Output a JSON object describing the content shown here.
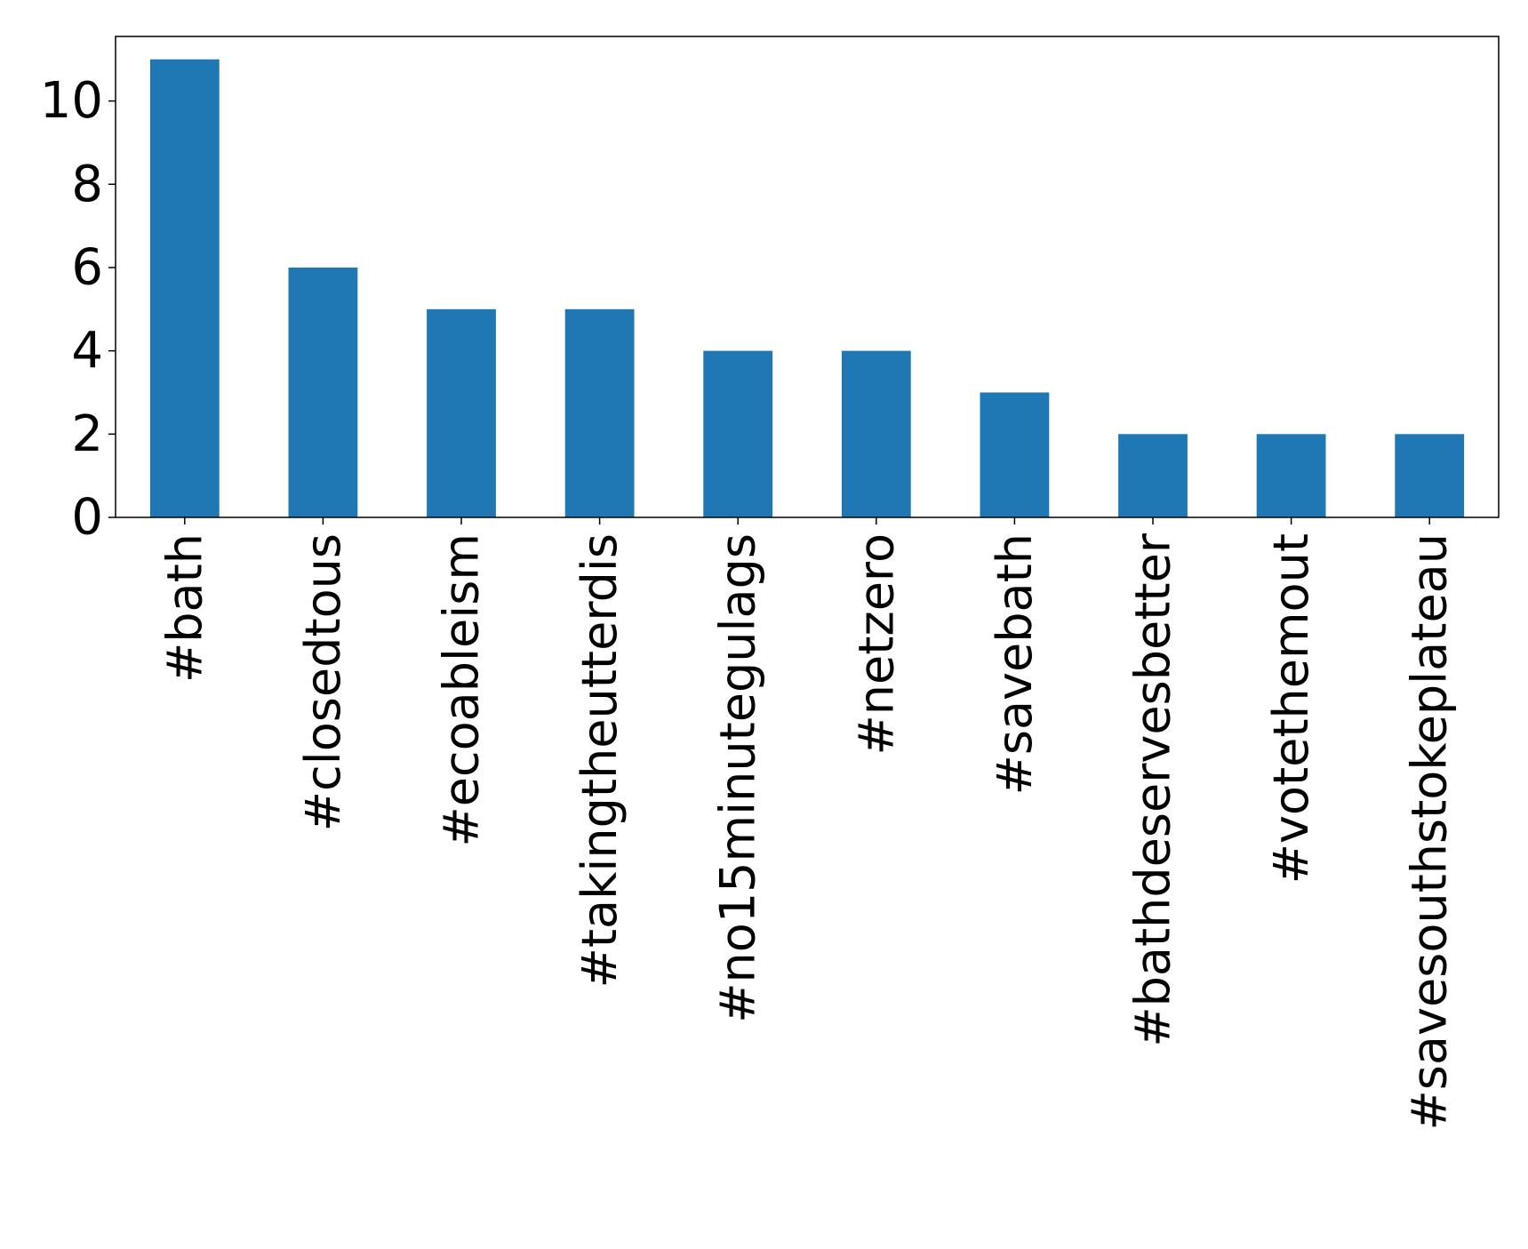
{
  "chart_data": {
    "type": "bar",
    "categories": [
      "#bath",
      "#closedtous",
      "#ecoableism",
      "#takingtheutterdis",
      "#no15minutegulags",
      "#netzero",
      "#savebath",
      "#bathdeservesbetter",
      "#votethemout",
      "#savesouthstokeplateau"
    ],
    "values": [
      11,
      6,
      5,
      5,
      4,
      4,
      3,
      2,
      2,
      2
    ],
    "title": "",
    "xlabel": "",
    "ylabel": "",
    "ylim": [
      0,
      11.55
    ],
    "yticks": [
      0,
      2,
      4,
      6,
      8,
      10
    ],
    "grid": false,
    "legend": "none",
    "bar_color": "#1f77b4"
  }
}
